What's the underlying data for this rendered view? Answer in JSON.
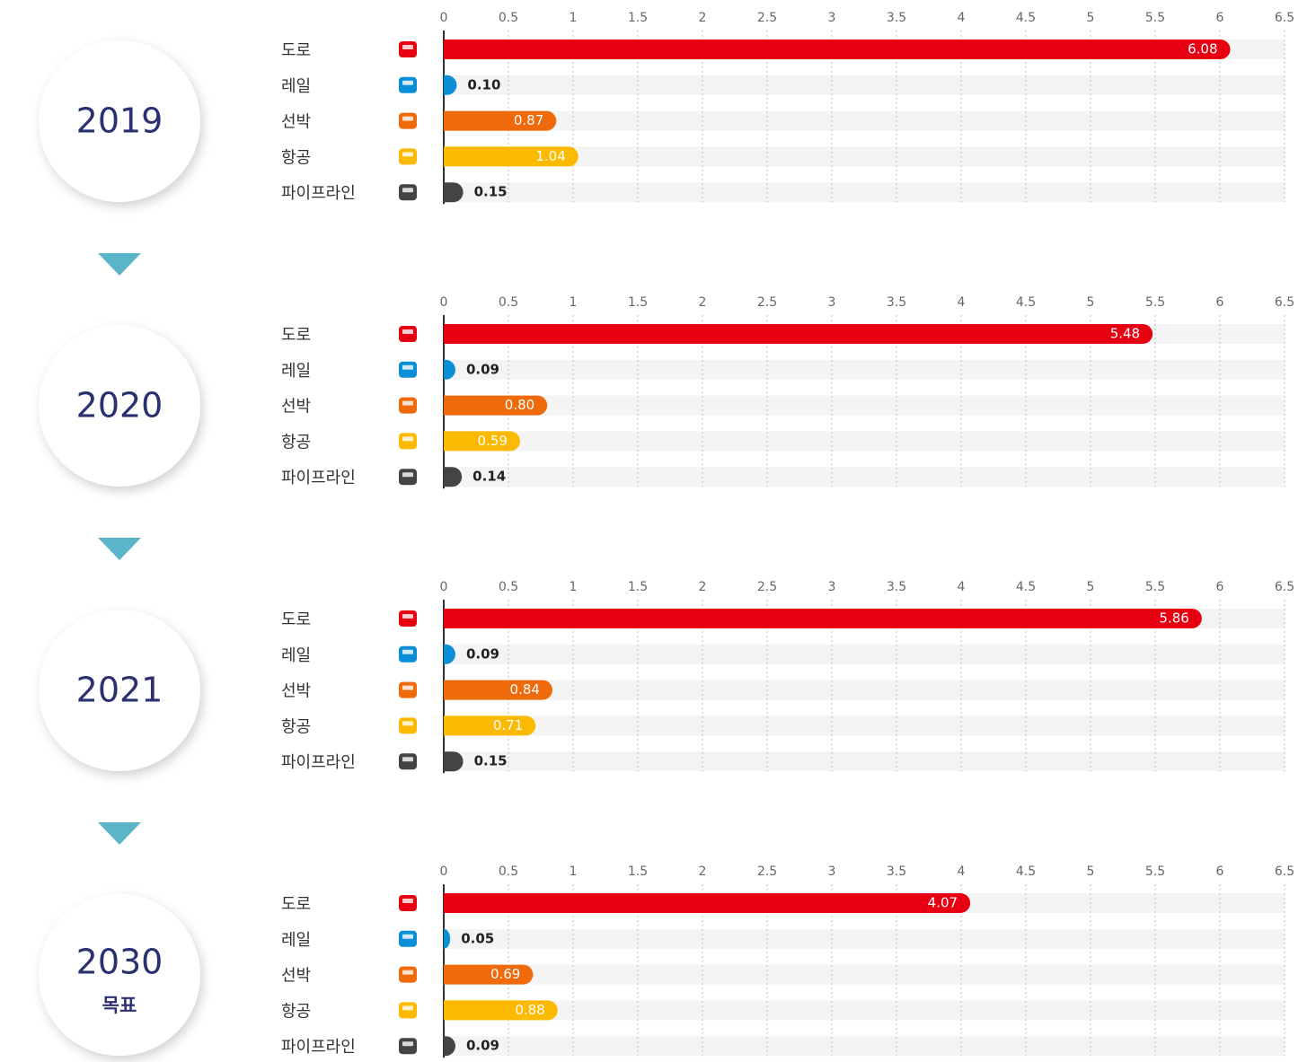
{
  "chart_data": [
    {
      "type": "bar",
      "title": "2019",
      "categories": [
        "도로",
        "레일",
        "선박",
        "항공",
        "파이프라인"
      ],
      "values": [
        6.08,
        0.1,
        0.87,
        1.04,
        0.15
      ],
      "value_labels": [
        "6.08",
        "0.10",
        "0.87",
        "1.04",
        "0.15"
      ],
      "colors": [
        "#e60012",
        "#0a8fd6",
        "#ee6a0b",
        "#fbb900",
        "#444444"
      ],
      "xlim": [
        0,
        6.5
      ],
      "xticks": [
        0,
        0.5,
        1,
        1.5,
        2,
        2.5,
        3,
        3.5,
        4,
        4.5,
        5,
        5.5,
        6,
        6.5
      ],
      "grid": true
    },
    {
      "type": "bar",
      "title": "2020",
      "categories": [
        "도로",
        "레일",
        "선박",
        "항공",
        "파이프라인"
      ],
      "values": [
        5.48,
        0.09,
        0.8,
        0.59,
        0.14
      ],
      "value_labels": [
        "5.48",
        "0.09",
        "0.80",
        "0.59",
        "0.14"
      ],
      "colors": [
        "#e60012",
        "#0a8fd6",
        "#ee6a0b",
        "#fbb900",
        "#444444"
      ],
      "xlim": [
        0,
        6.5
      ],
      "xticks": [
        0,
        0.5,
        1,
        1.5,
        2,
        2.5,
        3,
        3.5,
        4,
        4.5,
        5,
        5.5,
        6,
        6.5
      ],
      "grid": true
    },
    {
      "type": "bar",
      "title": "2021",
      "categories": [
        "도로",
        "레일",
        "선박",
        "항공",
        "파이프라인"
      ],
      "values": [
        5.86,
        0.09,
        0.84,
        0.71,
        0.15
      ],
      "value_labels": [
        "5.86",
        "0.09",
        "0.84",
        "0.71",
        "0.15"
      ],
      "colors": [
        "#e60012",
        "#0a8fd6",
        "#ee6a0b",
        "#fbb900",
        "#444444"
      ],
      "xlim": [
        0,
        6.5
      ],
      "xticks": [
        0,
        0.5,
        1,
        1.5,
        2,
        2.5,
        3,
        3.5,
        4,
        4.5,
        5,
        5.5,
        6,
        6.5
      ],
      "grid": true
    },
    {
      "type": "bar",
      "title": "2030",
      "subtitle": "목표",
      "categories": [
        "도로",
        "레일",
        "선박",
        "항공",
        "파이프라인"
      ],
      "values": [
        4.07,
        0.05,
        0.69,
        0.88,
        0.09
      ],
      "value_labels": [
        "4.07",
        "0.05",
        "0.69",
        "0.88",
        "0.09"
      ],
      "colors": [
        "#e60012",
        "#0a8fd6",
        "#ee6a0b",
        "#fbb900",
        "#444444"
      ],
      "xlim": [
        0,
        6.5
      ],
      "xticks": [
        0,
        0.5,
        1,
        1.5,
        2,
        2.5,
        3,
        3.5,
        4,
        4.5,
        5,
        5.5,
        6,
        6.5
      ],
      "grid": true
    }
  ]
}
